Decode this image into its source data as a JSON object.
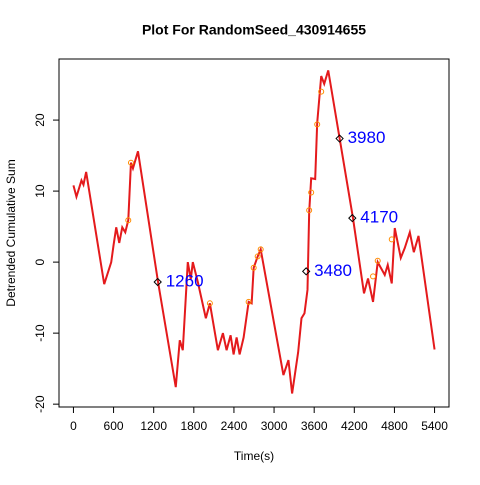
{
  "chart_data": {
    "type": "line",
    "title": "Plot For RandomSeed_430914655",
    "xlabel": "Time(s)",
    "ylabel": "Detrended Cumulative Sum",
    "xlim": [
      -216,
      5616
    ],
    "ylim": [
      -20.4,
      28.6
    ],
    "xticks": [
      0,
      600,
      1200,
      1800,
      2400,
      3000,
      3600,
      4200,
      4800,
      5400
    ],
    "yticks": [
      -20,
      -10,
      0,
      10,
      20
    ],
    "series": [
      {
        "name": "Detrended Cumulative Sum",
        "color": "#e41a1c",
        "x": [
          0,
          45,
          120,
          150,
          190,
          460,
          565,
          600,
          640,
          685,
          730,
          775,
          820,
          860,
          890,
          965,
          1265,
          1530,
          1590,
          1635,
          1710,
          1755,
          1785,
          1860,
          1980,
          2040,
          2160,
          2235,
          2290,
          2350,
          2395,
          2440,
          2485,
          2545,
          2620,
          2665,
          2695,
          2755,
          2800,
          3140,
          3215,
          3270,
          3360,
          3410,
          3455,
          3500,
          3525,
          3555,
          3615,
          3645,
          3705,
          3750,
          3810,
          4180,
          4345,
          4405,
          4480,
          4550,
          4655,
          4700,
          4760,
          4805,
          4895,
          4955,
          5030,
          5090,
          5160,
          5400
        ],
        "values": [
          10.8,
          9.2,
          11.5,
          10.9,
          12.7,
          -3.1,
          0,
          2.4,
          4.9,
          2.7,
          4.9,
          4.2,
          5.9,
          14,
          13.2,
          15.6,
          -2.8,
          -17.6,
          -11,
          -12.4,
          0,
          -2.4,
          0,
          -2.8,
          -7.9,
          -5.8,
          -12.4,
          -10,
          -12.4,
          -10.3,
          -13,
          -10.6,
          -13,
          -10.6,
          -5.6,
          -5.8,
          -0.8,
          0.8,
          1.8,
          -15.9,
          -13.8,
          -18.5,
          -12.7,
          -7.9,
          -7.2,
          -3.9,
          7,
          11.8,
          11.7,
          19.6,
          26.2,
          25.1,
          27,
          6.2,
          -4.4,
          -2.3,
          -5.6,
          0,
          -1.8,
          -0.4,
          -3,
          4.8,
          0.6,
          2,
          4.2,
          1.4,
          3.7,
          -12.3
        ]
      }
    ],
    "markers": {
      "color": "#ff8c00",
      "x": [
        820,
        860,
        2040,
        2620,
        2695,
        2755,
        2800,
        3525,
        3555,
        3645,
        3705,
        4480,
        4550,
        4760
      ],
      "y": [
        5.9,
        14,
        -5.8,
        -5.6,
        -0.8,
        0.8,
        1.8,
        7.3,
        9.8,
        19.4,
        24,
        -2,
        0.2,
        3.2
      ]
    },
    "annotations": [
      {
        "label": "1260",
        "x": 1260,
        "y": -2.8
      },
      {
        "label": "3480",
        "x": 3480,
        "y": -1.3
      },
      {
        "label": "3980",
        "x": 3980,
        "y": 17.4
      },
      {
        "label": "4170",
        "x": 4170,
        "y": 6.2
      }
    ],
    "annotation_color": "#0000ff"
  }
}
